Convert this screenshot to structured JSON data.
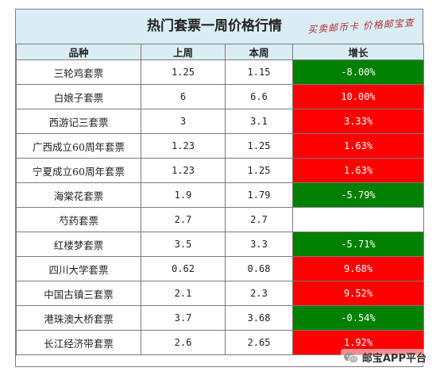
{
  "title": "热门套票一周价格行情",
  "watermark": "买卖邮币卡 价格邮宝查",
  "columns": [
    "品种",
    "上周",
    "本周",
    "增长"
  ],
  "rows": [
    {
      "name": "三轮鸡套票",
      "last": "1.25",
      "this": "1.15",
      "growth": "-8.00%",
      "trend": "down"
    },
    {
      "name": "白娘子套票",
      "last": "6",
      "this": "6.6",
      "growth": "10.00%",
      "trend": "up"
    },
    {
      "name": "西游记三套票",
      "last": "3",
      "this": "3.1",
      "growth": "3.33%",
      "trend": "up"
    },
    {
      "name": "广西成立60周年套票",
      "last": "1.23",
      "this": "1.25",
      "growth": "1.63%",
      "trend": "up"
    },
    {
      "name": "宁夏成立60周年套票",
      "last": "1.23",
      "this": "1.25",
      "growth": "1.63%",
      "trend": "up"
    },
    {
      "name": "海棠花套票",
      "last": "1.9",
      "this": "1.79",
      "growth": "-5.79%",
      "trend": "down"
    },
    {
      "name": "芍药套票",
      "last": "2.7",
      "this": "2.7",
      "growth": "",
      "trend": "flat"
    },
    {
      "name": "红楼梦套票",
      "last": "3.5",
      "this": "3.3",
      "growth": "-5.71%",
      "trend": "down"
    },
    {
      "name": "四川大学套票",
      "last": "0.62",
      "this": "0.68",
      "growth": "9.68%",
      "trend": "up"
    },
    {
      "name": "中国古镇三套票",
      "last": "2.1",
      "this": "2.3",
      "growth": "9.52%",
      "trend": "up"
    },
    {
      "name": "港珠澳大桥套票",
      "last": "3.7",
      "this": "3.68",
      "growth": "-0.54%",
      "trend": "down"
    },
    {
      "name": "长江经济带套票",
      "last": "2.6",
      "this": "2.65",
      "growth": "1.92%",
      "trend": "up"
    }
  ],
  "colors": {
    "up": "#ff0000",
    "down": "#008000",
    "header": "#daedf4"
  },
  "brand": {
    "label": "邮宝APP平台",
    "icon": "wechat-icon"
  }
}
